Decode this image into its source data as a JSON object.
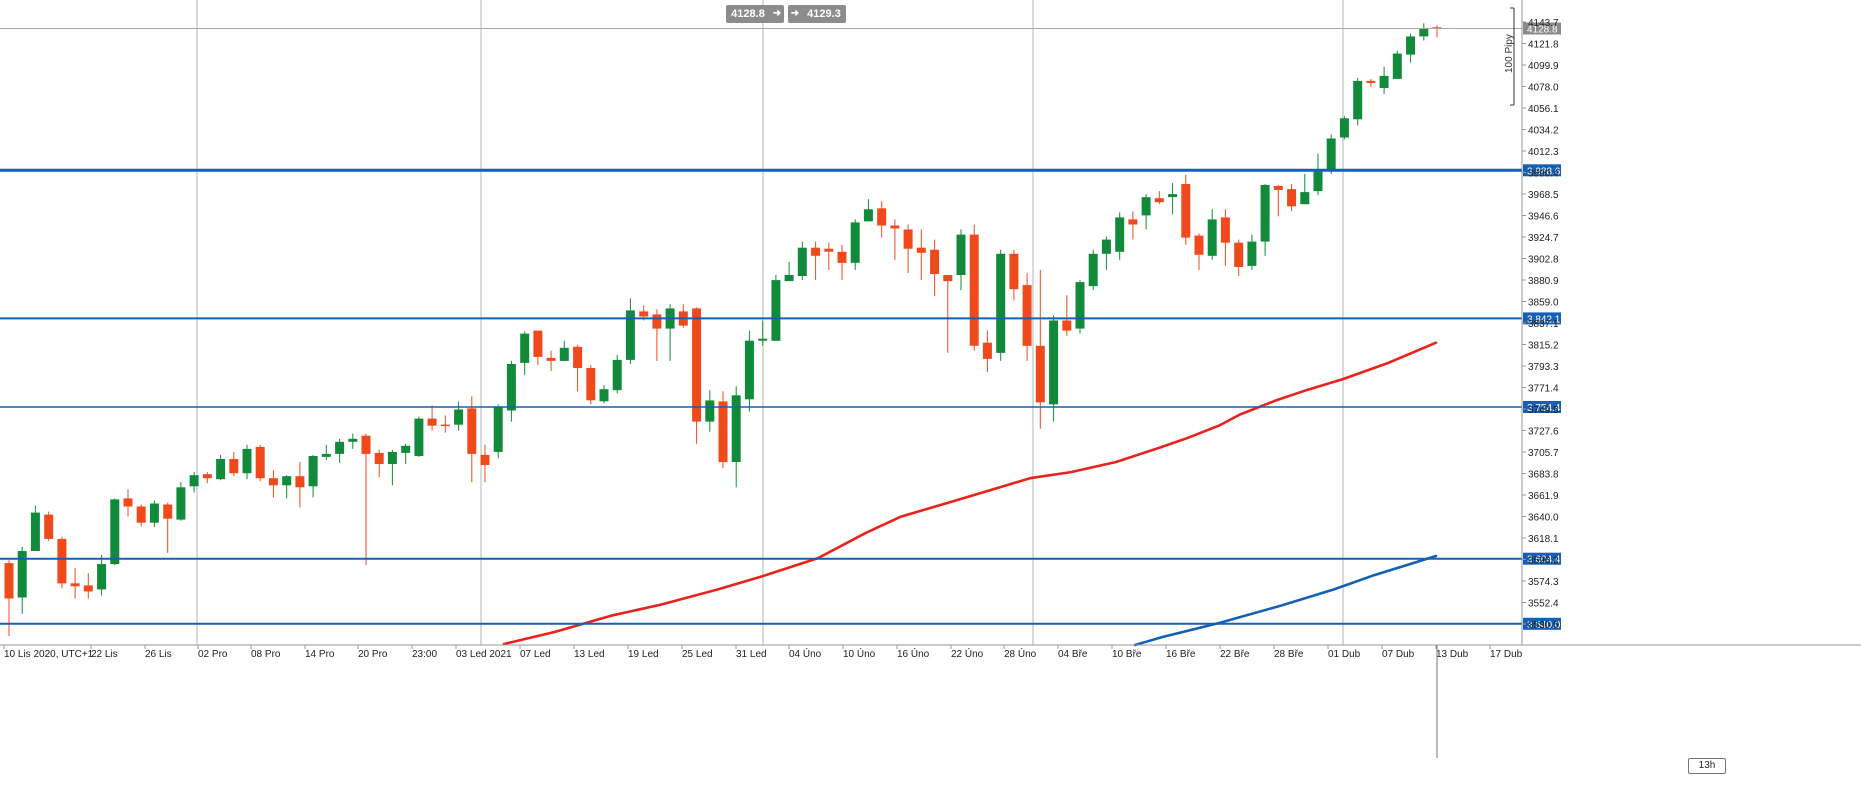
{
  "toolbar": {
    "sell_price": "4128.8",
    "buy_price": "4129.3",
    "sell_arrow": "➜",
    "buy_arrow": "➜"
  },
  "pips_label": "100 Pipy",
  "timeframe_label": "13h",
  "current_price_label": "4128.8",
  "chart_data": {
    "type": "candlestick",
    "y_ticks": [
      "4143.7",
      "4121.8",
      "4099.9",
      "4078.0",
      "4056.1",
      "4034.2",
      "4012.3",
      "3990.4",
      "3968.5",
      "3946.6",
      "3924.7",
      "3902.8",
      "3880.9",
      "3859.0",
      "3837.1",
      "3815.2",
      "3793.3",
      "3771.4",
      "3749.5",
      "3727.6",
      "3705.7",
      "3683.8",
      "3661.9",
      "3640.0",
      "3618.1",
      "3596.2",
      "3574.3",
      "3552.4",
      "3530.5"
    ],
    "y_range": [
      3519,
      4160
    ],
    "x_labels": [
      "10 Lis 2020, UTC+1",
      "22 Lis",
      "26 Lis",
      "02 Pro",
      "08 Pro",
      "14 Pro",
      "20 Pro",
      "23:00",
      "03 Led 2021",
      "07 Led",
      "13 Led",
      "19 Led",
      "25 Led",
      "31 Led",
      "04 Úno",
      "10 Úno",
      "16 Úno",
      "22 Úno",
      "28 Úno",
      "04 Bře",
      "10 Bře",
      "16 Bře",
      "22 Bře",
      "28 Bře",
      "01 Dub",
      "07 Dub",
      "13 Dub",
      "17 Dub"
    ],
    "levels": [
      {
        "price": 3988.6,
        "label": "3 988.6",
        "width": 3
      },
      {
        "price": 3842.1,
        "label": "3 842.1",
        "width": 2
      },
      {
        "price": 3754.4,
        "label": "3 754.4",
        "width": 1.5
      },
      {
        "price": 3604.4,
        "label": "3 604.4",
        "width": 2
      },
      {
        "price": 3540.0,
        "label": "3 540.0",
        "width": 2
      }
    ],
    "current_price": 4128.8,
    "candles": [
      [
        3600,
        3565,
        3603,
        3528
      ],
      [
        3566,
        3612,
        3616,
        3550
      ],
      [
        3612,
        3650,
        3657,
        3612
      ],
      [
        3648,
        3624,
        3651,
        3622
      ],
      [
        3624,
        3580,
        3626,
        3575
      ],
      [
        3580,
        3577,
        3595,
        3565
      ],
      [
        3578,
        3572,
        3590,
        3565
      ],
      [
        3574,
        3599,
        3608,
        3568
      ],
      [
        3599,
        3663,
        3664,
        3598
      ],
      [
        3664,
        3656,
        3673,
        3646
      ],
      [
        3656,
        3640,
        3658,
        3636
      ],
      [
        3640,
        3659,
        3662,
        3636
      ],
      [
        3658,
        3644,
        3660,
        3610
      ],
      [
        3643,
        3675,
        3680,
        3642
      ],
      [
        3676,
        3687,
        3690,
        3670
      ],
      [
        3688,
        3684,
        3690,
        3679
      ],
      [
        3683,
        3703,
        3707,
        3682
      ],
      [
        3703,
        3689,
        3710,
        3686
      ],
      [
        3689,
        3713,
        3717,
        3683
      ],
      [
        3715,
        3684,
        3717,
        3681
      ],
      [
        3684,
        3677,
        3692,
        3665
      ],
      [
        3677,
        3686,
        3687,
        3664
      ],
      [
        3686,
        3675,
        3700,
        3655
      ],
      [
        3676,
        3706,
        3707,
        3665
      ],
      [
        3705,
        3708,
        3717,
        3702
      ],
      [
        3708,
        3720,
        3723,
        3699
      ],
      [
        3720,
        3723,
        3728,
        3713
      ],
      [
        3726,
        3708,
        3728,
        3598
      ],
      [
        3709,
        3698,
        3712,
        3685
      ],
      [
        3698,
        3710,
        3712,
        3677
      ],
      [
        3709,
        3716,
        3718,
        3698
      ],
      [
        3706,
        3743,
        3745,
        3705
      ],
      [
        3743,
        3736,
        3756,
        3731
      ],
      [
        3737,
        3736,
        3746,
        3729
      ],
      [
        3737,
        3752,
        3760,
        3731
      ],
      [
        3753,
        3708,
        3765,
        3680
      ],
      [
        3707,
        3697,
        3717,
        3680
      ],
      [
        3710,
        3754,
        3757,
        3704
      ],
      [
        3751,
        3797,
        3800,
        3740
      ],
      [
        3798,
        3827,
        3829,
        3786
      ],
      [
        3830,
        3804,
        3830,
        3796
      ],
      [
        3803,
        3800,
        3810,
        3790
      ],
      [
        3800,
        3813,
        3820,
        3800
      ],
      [
        3814,
        3793,
        3816,
        3770
      ],
      [
        3793,
        3761,
        3796,
        3757
      ],
      [
        3760,
        3772,
        3776,
        3758
      ],
      [
        3771,
        3801,
        3806,
        3768
      ],
      [
        3801,
        3850,
        3862,
        3797
      ],
      [
        3849,
        3844,
        3855,
        3840
      ],
      [
        3846,
        3832,
        3851,
        3800
      ],
      [
        3832,
        3852,
        3856,
        3800
      ],
      [
        3849,
        3835,
        3856,
        3833
      ],
      [
        3852,
        3740,
        3853,
        3718
      ],
      [
        3740,
        3761,
        3771,
        3730
      ],
      [
        3760,
        3700,
        3770,
        3694
      ],
      [
        3700,
        3766,
        3775,
        3675
      ],
      [
        3762,
        3820,
        3830,
        3750
      ],
      [
        3820,
        3822,
        3840,
        3815
      ],
      [
        3820,
        3880,
        3885,
        3820
      ],
      [
        3879,
        3885,
        3898,
        3880
      ],
      [
        3884,
        3912,
        3918,
        3880
      ],
      [
        3912,
        3904,
        3918,
        3880
      ],
      [
        3911,
        3908,
        3917,
        3890
      ],
      [
        3908,
        3897,
        3915,
        3880
      ],
      [
        3897,
        3937,
        3940,
        3890
      ],
      [
        3938,
        3950,
        3960,
        3940
      ],
      [
        3951,
        3934,
        3958,
        3922
      ],
      [
        3934,
        3931,
        3940,
        3900
      ],
      [
        3930,
        3911,
        3935,
        3887
      ],
      [
        3912,
        3907,
        3930,
        3880
      ],
      [
        3910,
        3886,
        3920,
        3864
      ],
      [
        3885,
        3879,
        3883,
        3808
      ],
      [
        3885,
        3925,
        3930,
        3870
      ],
      [
        3925,
        3815,
        3935,
        3810
      ],
      [
        3818,
        3802,
        3830,
        3789
      ],
      [
        3808,
        3906,
        3910,
        3800
      ],
      [
        3906,
        3871,
        3910,
        3860
      ],
      [
        3875,
        3815,
        3887,
        3800
      ],
      [
        3815,
        3759,
        3890,
        3733
      ],
      [
        3757,
        3840,
        3845,
        3740
      ],
      [
        3840,
        3830,
        3865,
        3825
      ],
      [
        3832,
        3878,
        3880,
        3827
      ],
      [
        3874,
        3906,
        3910,
        3870
      ],
      [
        3906,
        3920,
        3923,
        3890
      ],
      [
        3908,
        3942,
        3947,
        3900
      ],
      [
        3940,
        3935,
        3948,
        3920
      ],
      [
        3944,
        3962,
        3965,
        3930
      ],
      [
        3961,
        3957,
        3968,
        3955
      ],
      [
        3962,
        3965,
        3976,
        3945
      ],
      [
        3975,
        3922,
        3984,
        3915
      ],
      [
        3924,
        3905,
        3926,
        3890
      ],
      [
        3904,
        3940,
        3950,
        3900
      ],
      [
        3942,
        3917,
        3950,
        3894
      ],
      [
        3917,
        3893,
        3920,
        3884
      ],
      [
        3894,
        3918,
        3925,
        3890
      ],
      [
        3918,
        3974,
        3975,
        3904
      ],
      [
        3973,
        3969,
        3974,
        3943
      ],
      [
        3970,
        3953,
        3975,
        3948
      ],
      [
        3955,
        3967,
        3985,
        3960
      ],
      [
        3968,
        3989,
        4005,
        3964
      ],
      [
        3988,
        4020,
        4024,
        3985
      ],
      [
        4021,
        4040,
        4042,
        4019
      ],
      [
        4039,
        4077,
        4080,
        4033
      ],
      [
        4077,
        4075,
        4079,
        4071
      ],
      [
        4070,
        4082,
        4091,
        4064
      ],
      [
        4079,
        4104,
        4107,
        4079
      ],
      [
        4103,
        4121,
        4124,
        4095
      ],
      [
        4121,
        4129,
        4134,
        4117
      ],
      [
        4130,
        4129,
        4132,
        4120
      ]
    ],
    "series": [
      {
        "color": "#e8231d",
        "start_x": 504,
        "points": [
          [
            504,
            3520
          ],
          [
            555,
            3532
          ],
          [
            611,
            3548
          ],
          [
            661,
            3559
          ],
          [
            718,
            3574
          ],
          [
            759,
            3586
          ],
          [
            818,
            3605
          ],
          [
            866,
            3630
          ],
          [
            901,
            3646
          ],
          [
            949,
            3660
          ],
          [
            1000,
            3675
          ],
          [
            1030,
            3684
          ],
          [
            1071,
            3690
          ],
          [
            1116,
            3700
          ],
          [
            1159,
            3714
          ],
          [
            1188,
            3724
          ],
          [
            1219,
            3736
          ],
          [
            1240,
            3747
          ],
          [
            1276,
            3761
          ],
          [
            1303,
            3770
          ],
          [
            1343,
            3782
          ],
          [
            1388,
            3798
          ],
          [
            1436,
            3818
          ]
        ]
      },
      {
        "color": "#1460b4",
        "start_x": 1135,
        "points": [
          [
            1135,
            3519
          ],
          [
            1163,
            3527
          ],
          [
            1220,
            3541
          ],
          [
            1281,
            3558
          ],
          [
            1334,
            3574
          ],
          [
            1374,
            3588
          ],
          [
            1436,
            3607
          ]
        ]
      }
    ]
  }
}
